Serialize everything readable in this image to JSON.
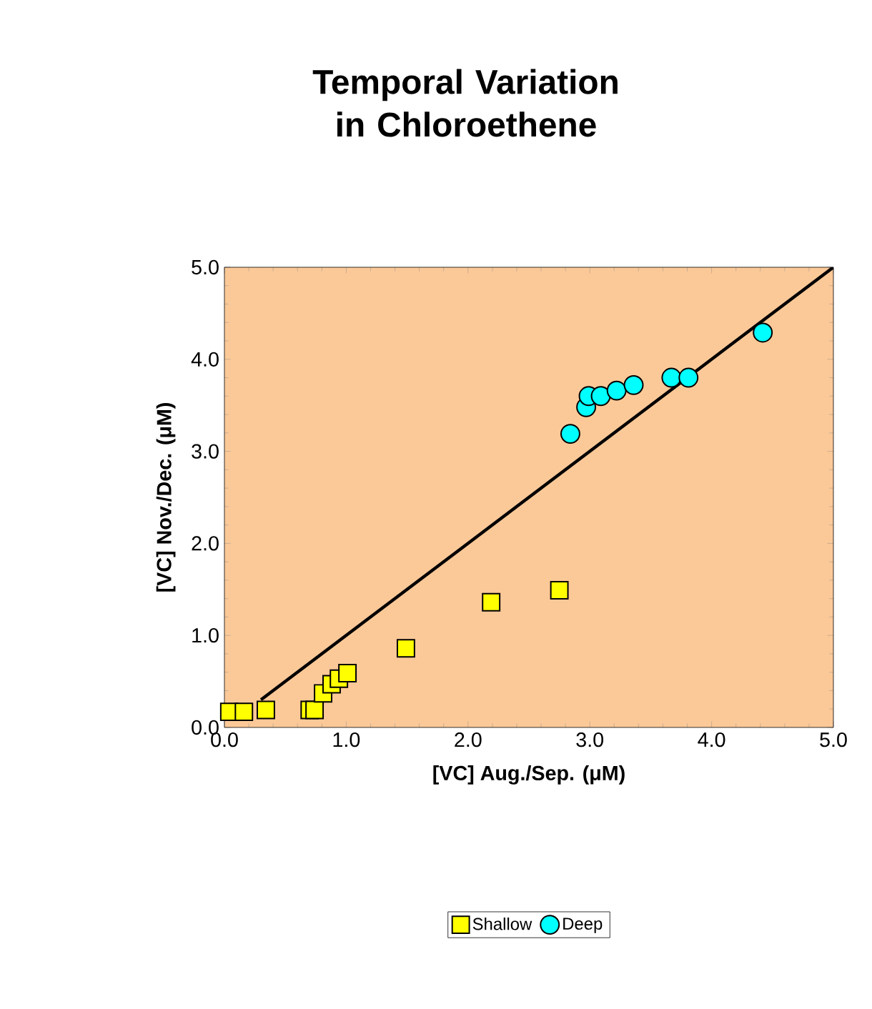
{
  "chart_data": {
    "type": "scatter",
    "title": "Temporal Variation in Chloroethene",
    "xlabel": "[VC] Aug./Sep. (μM)",
    "ylabel": "[VC] Nov./Dec. (μM)",
    "xlim": [
      0,
      5
    ],
    "ylim": [
      0,
      5
    ],
    "xticks": [
      {
        "value": 0,
        "label": "0.0"
      },
      {
        "value": 1,
        "label": "1.0"
      },
      {
        "value": 2,
        "label": "2.0"
      },
      {
        "value": 3,
        "label": "3.0"
      },
      {
        "value": 4,
        "label": "4.0"
      },
      {
        "value": 5,
        "label": "5.0"
      }
    ],
    "yticks": [
      {
        "value": 0,
        "label": "0.0"
      },
      {
        "value": 1,
        "label": "1.0"
      },
      {
        "value": 2,
        "label": "2.0"
      },
      {
        "value": 3,
        "label": "3.0"
      },
      {
        "value": 4,
        "label": "4.0"
      },
      {
        "value": 5,
        "label": "5.0"
      }
    ],
    "grid": false,
    "legend": "bottom",
    "series": [
      {
        "type": "line",
        "color": "#000000",
        "marker": "none",
        "x": [
          0.3,
          5.0
        ],
        "values": [
          0.3,
          5.0
        ]
      },
      {
        "name": "Shallow",
        "color": "#ffff00",
        "marker": "square",
        "x": [
          0.04,
          0.16,
          0.34,
          0.7,
          0.74,
          0.81,
          0.88,
          0.94,
          1.01,
          1.49,
          2.19,
          2.75
        ],
        "values": [
          0.17,
          0.17,
          0.19,
          0.19,
          0.19,
          0.37,
          0.47,
          0.53,
          0.59,
          0.86,
          1.36,
          1.49
        ]
      },
      {
        "name": "Deep",
        "color": "#00ffff",
        "marker": "circle",
        "x": [
          2.84,
          2.97,
          2.99,
          3.09,
          3.22,
          3.36,
          3.67,
          3.81,
          4.42
        ],
        "values": [
          3.19,
          3.48,
          3.6,
          3.6,
          3.66,
          3.72,
          3.8,
          3.8,
          4.29
        ]
      }
    ]
  }
}
